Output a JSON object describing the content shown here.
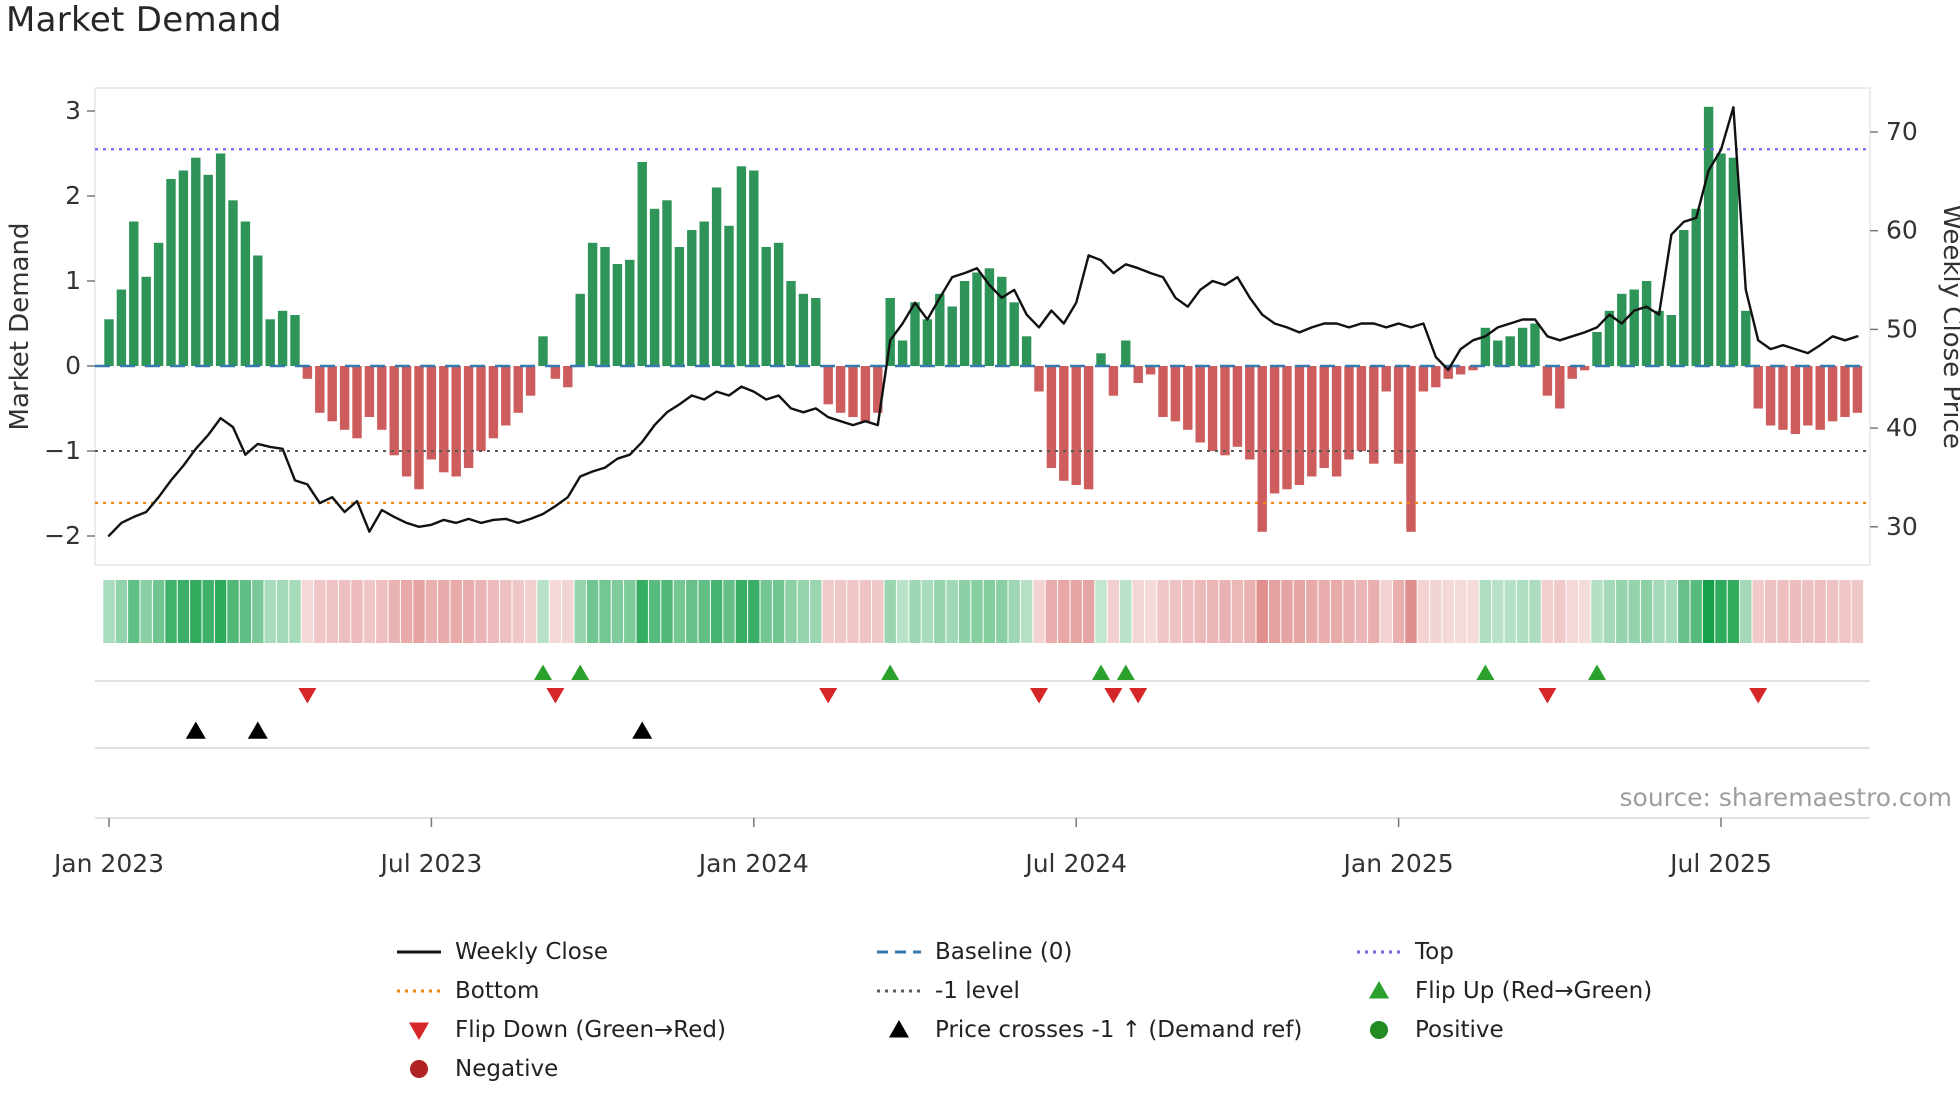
{
  "page": {
    "title": "Market Demand",
    "source": "source: sharemaestro.com"
  },
  "axes": {
    "left_label": "Market Demand",
    "right_label": "Weekly Close Price",
    "left_ticks": [
      {
        "value": 3,
        "label": "3"
      },
      {
        "value": 2,
        "label": "2"
      },
      {
        "value": 1,
        "label": "1"
      },
      {
        "value": 0,
        "label": "0"
      },
      {
        "value": -1,
        "label": "−1"
      },
      {
        "value": -2,
        "label": "−2"
      }
    ],
    "right_ticks": [
      {
        "value": 70,
        "label": "70"
      },
      {
        "value": 60,
        "label": "60"
      },
      {
        "value": 50,
        "label": "50"
      },
      {
        "value": 40,
        "label": "40"
      },
      {
        "value": 30,
        "label": "30"
      }
    ],
    "x_ticks": [
      {
        "week": 0,
        "label": "Jan 2023"
      },
      {
        "week": 26,
        "label": "Jul 2023"
      },
      {
        "week": 52,
        "label": "Jan 2024"
      },
      {
        "week": 78,
        "label": "Jul 2024"
      },
      {
        "week": 104,
        "label": "Jan 2025"
      },
      {
        "week": 130,
        "label": "Jul 2025"
      }
    ]
  },
  "colors": {
    "bar_positive": "#2e9458",
    "bar_negative": "#cd5c5c",
    "price_line": "#111111",
    "baseline": "#3779ae",
    "top_line": "#7b68ee",
    "bottom_line": "#ee8711",
    "minus1_line": "#595959",
    "flip_up": "#2ca02c",
    "flip_down": "#d62728",
    "price_cross": "#000000",
    "positive_dot": "#228b22",
    "negative_dot": "#b22222",
    "heat_positive": "#16a04a",
    "heat_negative": "#d66868"
  },
  "chart_data": [
    {
      "type": "bar",
      "name": "Market Demand",
      "title": "Market Demand",
      "x_unit": "week (Jan 2023 – Sep 2025, 142 weekly bars)",
      "ylabel": "Market Demand",
      "ylim": [
        -2.35,
        3.27
      ],
      "levels": {
        "baseline": 0,
        "top": 2.55,
        "bottom": -1.61,
        "minus1": -1
      },
      "values": [
        0.55,
        0.9,
        1.7,
        1.05,
        1.45,
        2.2,
        2.3,
        2.45,
        2.25,
        2.5,
        1.95,
        1.7,
        1.3,
        0.55,
        0.65,
        0.6,
        -0.15,
        -0.55,
        -0.65,
        -0.75,
        -0.85,
        -0.6,
        -0.75,
        -1.05,
        -1.3,
        -1.45,
        -1.1,
        -1.25,
        -1.3,
        -1.2,
        -1.0,
        -0.85,
        -0.7,
        -0.55,
        -0.35,
        0.35,
        -0.15,
        -0.25,
        0.85,
        1.45,
        1.4,
        1.2,
        1.25,
        2.4,
        1.85,
        1.95,
        1.4,
        1.6,
        1.7,
        2.1,
        1.65,
        2.35,
        2.3,
        1.4,
        1.45,
        1.0,
        0.85,
        0.8,
        -0.45,
        -0.55,
        -0.6,
        -0.65,
        -0.55,
        0.8,
        0.3,
        0.75,
        0.55,
        0.85,
        0.7,
        1.0,
        1.1,
        1.15,
        1.05,
        0.75,
        0.35,
        -0.3,
        -1.2,
        -1.35,
        -1.4,
        -1.45,
        0.15,
        -0.35,
        0.3,
        -0.2,
        -0.1,
        -0.6,
        -0.65,
        -0.75,
        -0.9,
        -1.0,
        -1.05,
        -0.95,
        -1.1,
        -1.95,
        -1.5,
        -1.45,
        -1.4,
        -1.3,
        -1.2,
        -1.3,
        -1.1,
        -1.0,
        -1.15,
        -0.3,
        -1.15,
        -1.95,
        -0.3,
        -0.25,
        -0.15,
        -0.1,
        -0.05,
        0.45,
        0.3,
        0.35,
        0.45,
        0.5,
        -0.35,
        -0.5,
        -0.15,
        -0.05,
        0.4,
        0.65,
        0.85,
        0.9,
        1.0,
        0.65,
        0.6,
        1.6,
        1.85,
        3.05,
        2.5,
        2.45,
        0.65,
        -0.5,
        -0.7,
        -0.75,
        -0.8,
        -0.7,
        -0.75,
        -0.65,
        -0.6,
        -0.55
      ]
    },
    {
      "type": "line",
      "name": "Weekly Close",
      "axis": "right",
      "ylabel": "Weekly Close Price",
      "ylim": [
        27.9,
        74.5
      ],
      "values": [
        29.1,
        30.4,
        31.0,
        31.5,
        33.0,
        34.7,
        36.2,
        37.9,
        39.3,
        41.0,
        40.1,
        37.3,
        38.4,
        38.1,
        37.9,
        34.7,
        34.3,
        32.4,
        33.0,
        31.5,
        32.6,
        29.5,
        31.7,
        31.0,
        30.4,
        30.0,
        30.2,
        30.7,
        30.4,
        30.8,
        30.4,
        30.7,
        30.8,
        30.4,
        30.8,
        31.3,
        32.1,
        33.0,
        35.1,
        35.6,
        36.0,
        36.9,
        37.3,
        38.6,
        40.3,
        41.6,
        42.4,
        43.3,
        42.9,
        43.7,
        43.3,
        44.2,
        43.7,
        42.9,
        43.3,
        42.0,
        41.6,
        42.0,
        41.1,
        40.7,
        40.3,
        40.7,
        40.3,
        48.9,
        50.6,
        52.7,
        51.0,
        53.2,
        55.3,
        55.7,
        56.2,
        54.5,
        53.2,
        54.0,
        51.5,
        50.2,
        51.9,
        50.6,
        52.7,
        57.5,
        57.0,
        55.7,
        56.6,
        56.2,
        55.7,
        55.3,
        53.2,
        52.3,
        54.0,
        54.9,
        54.5,
        55.3,
        53.2,
        51.5,
        50.6,
        50.2,
        49.7,
        50.2,
        50.6,
        50.6,
        50.2,
        50.6,
        50.6,
        50.2,
        50.6,
        50.2,
        50.6,
        47.2,
        45.9,
        48.0,
        48.9,
        49.3,
        50.2,
        50.6,
        51.0,
        51.0,
        49.3,
        48.9,
        49.3,
        49.7,
        50.2,
        51.5,
        50.6,
        51.9,
        52.3,
        51.5,
        59.6,
        60.9,
        61.3,
        66.1,
        68.2,
        72.5,
        54.0,
        48.9,
        48.0,
        48.4,
        48.0,
        47.6,
        48.4,
        49.3,
        48.9,
        49.3
      ]
    },
    {
      "type": "heatmap",
      "name": "Demand heatmap strip",
      "values_from": "Market Demand",
      "note": "one cell per week, green intensity = positive demand magnitude, red intensity = negative demand magnitude"
    },
    {
      "type": "scatter",
      "name": "Signals",
      "series": [
        {
          "name": "Flip Up (Red→Green)",
          "marker": "triangle-up",
          "weeks": [
            35,
            38,
            63,
            80,
            82,
            111,
            120
          ]
        },
        {
          "name": "Flip Down (Green→Red)",
          "marker": "triangle-down",
          "weeks": [
            16,
            36,
            58,
            75,
            81,
            83,
            116,
            133
          ]
        },
        {
          "name": "Price crosses -1 ↑ (Demand ref)",
          "marker": "triangle-up",
          "weeks": [
            7,
            12,
            43
          ]
        }
      ]
    }
  ],
  "legend": {
    "columns": [
      [
        {
          "label": "Weekly Close",
          "swatch": "line",
          "color": "#111111"
        },
        {
          "label": "Bottom",
          "swatch": "dotted",
          "color": "#ee8711"
        },
        {
          "label": "Flip Down (Green→Red)",
          "swatch": "triangle-down",
          "color": "#d62728"
        },
        {
          "label": "Negative",
          "swatch": "circle",
          "color": "#b22222"
        }
      ],
      [
        {
          "label": "Baseline (0)",
          "swatch": "dashed",
          "color": "#3779ae"
        },
        {
          "label": "-1 level",
          "swatch": "dotted",
          "color": "#595959"
        },
        {
          "label": "Price crosses -1 ↑ (Demand ref)",
          "swatch": "triangle-up",
          "color": "#000000"
        }
      ],
      [
        {
          "label": "Top",
          "swatch": "dotted",
          "color": "#7b68ee"
        },
        {
          "label": "Flip Up (Red→Green)",
          "swatch": "triangle-up",
          "color": "#2ca02c"
        },
        {
          "label": "Positive",
          "swatch": "circle",
          "color": "#228b22"
        }
      ]
    ]
  }
}
